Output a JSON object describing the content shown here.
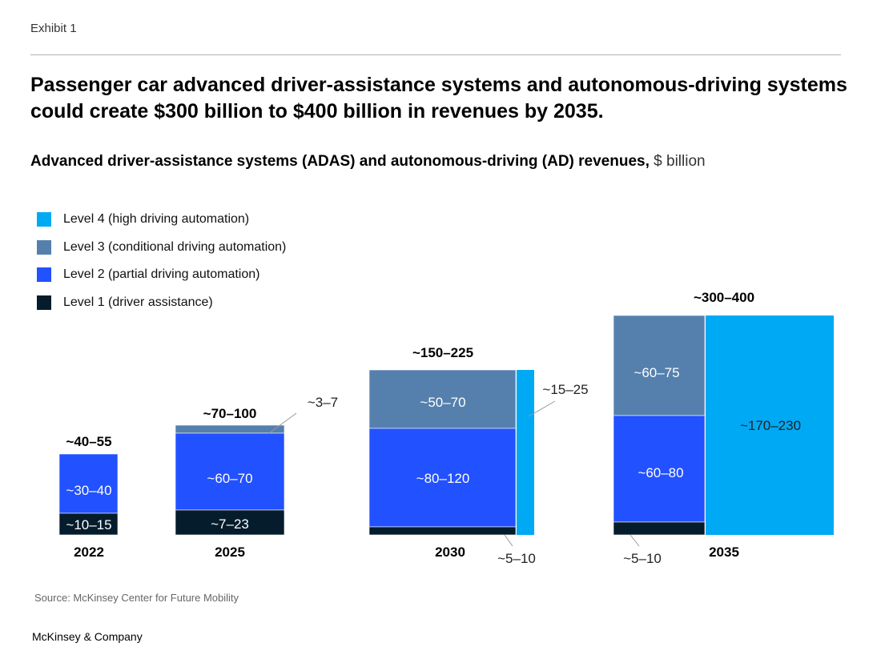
{
  "exhibit": "Exhibit 1",
  "title": "Passenger car advanced driver-assistance systems and autonomous-driving systems could create $300 billion to $400 billion in revenues by 2035.",
  "source": "Source: McKinsey Center for Future Mobility",
  "brand": "McKinsey & Company",
  "chart_data": {
    "type": "marimekko",
    "title": "Advanced driver-assistance systems (ADAS) and autonomous-driving (AD) revenues,",
    "unit": "$ billion",
    "legend": [
      {
        "name": "Level 4 (high driving automation)",
        "color": "#00a9f4"
      },
      {
        "name": "Level 3 (conditional driving automation)",
        "color": "#5580ad"
      },
      {
        "name": "Level 2 (partial driving automation)",
        "color": "#2251ff"
      },
      {
        "name": "Level 1 (driver assistance)",
        "color": "#051c2c"
      }
    ],
    "legend_placement": "top-left",
    "categories": [
      "2022",
      "2025",
      "2030",
      "2035"
    ],
    "totals": [
      "~40–55",
      "~70–100",
      "~150–225",
      "~300–400"
    ],
    "segments": {
      "2022": {
        "level1": "~10–15",
        "level2": "~30–40"
      },
      "2025": {
        "level1": "~7–23",
        "level2": "~60–70",
        "level3": "~3–7"
      },
      "2030": {
        "level1": "~5–10",
        "level2": "~80–120",
        "level3": "~50–70",
        "level4": "~15–25"
      },
      "2035": {
        "level1": "~5–10",
        "level2": "~60–80",
        "level3": "~60–75",
        "level4": "~170–230"
      }
    }
  }
}
